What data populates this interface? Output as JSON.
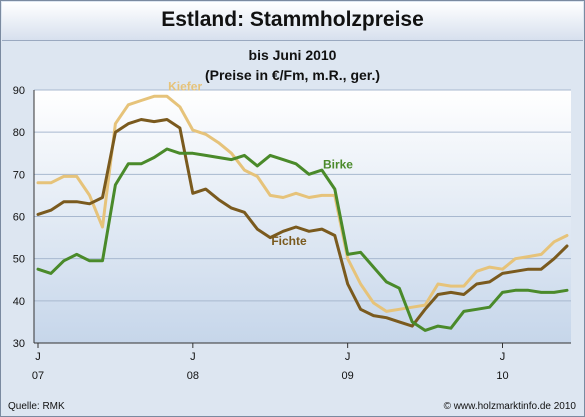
{
  "chart_data": {
    "type": "line",
    "title": "Estland: Stammholzpreise",
    "subtitle_lines": [
      "bis Juni 2010",
      "(Preise in €/Fm, m.R., ger.)"
    ],
    "xlabel": "",
    "ylabel": "",
    "ylim": [
      30,
      90
    ],
    "yticks": [
      30,
      40,
      50,
      60,
      70,
      80,
      90
    ],
    "y_gridlines": true,
    "x_start": "2007-01",
    "x_end": "2010-06",
    "xticks": [
      {
        "month": "2007-01",
        "label_top": "J",
        "label_bottom": "07"
      },
      {
        "month": "2008-01",
        "label_top": "J",
        "label_bottom": "08"
      },
      {
        "month": "2009-01",
        "label_top": "J",
        "label_bottom": "09"
      },
      {
        "month": "2010-01",
        "label_top": "J",
        "label_bottom": "10"
      }
    ],
    "series": [
      {
        "name": "Kiefer",
        "color": "#e6c37a",
        "label_at": "2007-10",
        "values": [
          [
            "2007-01",
            68
          ],
          [
            "2007-02",
            68
          ],
          [
            "2007-03",
            69.5
          ],
          [
            "2007-04",
            69.5
          ],
          [
            "2007-05",
            65
          ],
          [
            "2007-06",
            57.5
          ],
          [
            "2007-07",
            82
          ],
          [
            "2007-08",
            86.5
          ],
          [
            "2007-09",
            87.5
          ],
          [
            "2007-10",
            88.5
          ],
          [
            "2007-11",
            88.5
          ],
          [
            "2007-12",
            86
          ],
          [
            "2008-01",
            80.5
          ],
          [
            "2008-02",
            79.5
          ],
          [
            "2008-03",
            77.5
          ],
          [
            "2008-04",
            75
          ],
          [
            "2008-05",
            71
          ],
          [
            "2008-06",
            69.5
          ],
          [
            "2008-07",
            65
          ],
          [
            "2008-08",
            64.5
          ],
          [
            "2008-09",
            65.5
          ],
          [
            "2008-10",
            64.5
          ],
          [
            "2008-11",
            65
          ],
          [
            "2008-12",
            65
          ],
          [
            "2009-01",
            50
          ],
          [
            "2009-02",
            44
          ],
          [
            "2009-03",
            39.5
          ],
          [
            "2009-04",
            37.5
          ],
          [
            "2009-05",
            38
          ],
          [
            "2009-06",
            38.5
          ],
          [
            "2009-07",
            39
          ],
          [
            "2009-08",
            44
          ],
          [
            "2009-09",
            43.5
          ],
          [
            "2009-10",
            43.5
          ],
          [
            "2009-11",
            47
          ],
          [
            "2009-12",
            48
          ],
          [
            "2010-01",
            47.5
          ],
          [
            "2010-02",
            50
          ],
          [
            "2010-03",
            50.5
          ],
          [
            "2010-04",
            51
          ],
          [
            "2010-05",
            54
          ],
          [
            "2010-06",
            55.5
          ]
        ]
      },
      {
        "name": "Fichte",
        "color": "#7a5a1e",
        "label_at": "2008-06",
        "values": [
          [
            "2007-01",
            60.5
          ],
          [
            "2007-02",
            61.5
          ],
          [
            "2007-03",
            63.5
          ],
          [
            "2007-04",
            63.5
          ],
          [
            "2007-05",
            63
          ],
          [
            "2007-06",
            64.5
          ],
          [
            "2007-07",
            80
          ],
          [
            "2007-08",
            82
          ],
          [
            "2007-09",
            83
          ],
          [
            "2007-10",
            82.5
          ],
          [
            "2007-11",
            83
          ],
          [
            "2007-12",
            81
          ],
          [
            "2008-01",
            65.5
          ],
          [
            "2008-02",
            66.5
          ],
          [
            "2008-03",
            64
          ],
          [
            "2008-04",
            62
          ],
          [
            "2008-05",
            61
          ],
          [
            "2008-06",
            57
          ],
          [
            "2008-07",
            55
          ],
          [
            "2008-08",
            56.5
          ],
          [
            "2008-09",
            57.5
          ],
          [
            "2008-10",
            56.5
          ],
          [
            "2008-11",
            57
          ],
          [
            "2008-12",
            55.5
          ],
          [
            "2009-01",
            44
          ],
          [
            "2009-02",
            38
          ],
          [
            "2009-03",
            36.5
          ],
          [
            "2009-04",
            36
          ],
          [
            "2009-05",
            35
          ],
          [
            "2009-06",
            34
          ],
          [
            "2009-07",
            38
          ],
          [
            "2009-08",
            41.5
          ],
          [
            "2009-09",
            42
          ],
          [
            "2009-10",
            41.5
          ],
          [
            "2009-11",
            44
          ],
          [
            "2009-12",
            44.5
          ],
          [
            "2010-01",
            46.5
          ],
          [
            "2010-02",
            47
          ],
          [
            "2010-03",
            47.5
          ],
          [
            "2010-04",
            47.5
          ],
          [
            "2010-05",
            50
          ],
          [
            "2010-06",
            53
          ]
        ]
      },
      {
        "name": "Birke",
        "color": "#4a8a2a",
        "label_at": "2008-10",
        "values": [
          [
            "2007-01",
            47.5
          ],
          [
            "2007-02",
            46.5
          ],
          [
            "2007-03",
            49.5
          ],
          [
            "2007-04",
            51
          ],
          [
            "2007-05",
            49.5
          ],
          [
            "2007-06",
            49.5
          ],
          [
            "2007-07",
            67.5
          ],
          [
            "2007-08",
            72.5
          ],
          [
            "2007-09",
            72.5
          ],
          [
            "2007-10",
            74
          ],
          [
            "2007-11",
            76
          ],
          [
            "2007-12",
            75
          ],
          [
            "2008-01",
            75
          ],
          [
            "2008-02",
            74.5
          ],
          [
            "2008-03",
            74
          ],
          [
            "2008-04",
            73.5
          ],
          [
            "2008-05",
            74.5
          ],
          [
            "2008-06",
            72
          ],
          [
            "2008-07",
            74.5
          ],
          [
            "2008-08",
            73.5
          ],
          [
            "2008-09",
            72.5
          ],
          [
            "2008-10",
            70
          ],
          [
            "2008-11",
            71
          ],
          [
            "2008-12",
            66.5
          ],
          [
            "2009-01",
            51
          ],
          [
            "2009-02",
            51.5
          ],
          [
            "2009-03",
            48
          ],
          [
            "2009-04",
            44.5
          ],
          [
            "2009-05",
            43
          ],
          [
            "2009-06",
            35
          ],
          [
            "2009-07",
            33
          ],
          [
            "2009-08",
            34
          ],
          [
            "2009-09",
            33.5
          ],
          [
            "2009-10",
            37.5
          ],
          [
            "2009-11",
            38
          ],
          [
            "2009-12",
            38.5
          ],
          [
            "2010-01",
            42
          ],
          [
            "2010-02",
            42.5
          ],
          [
            "2010-03",
            42.5
          ],
          [
            "2010-04",
            42
          ],
          [
            "2010-05",
            42
          ],
          [
            "2010-06",
            42.5
          ]
        ]
      }
    ]
  },
  "footer": {
    "source": "Quelle: RMK",
    "copyright": "© www.holzmarktinfo.de 2010"
  }
}
